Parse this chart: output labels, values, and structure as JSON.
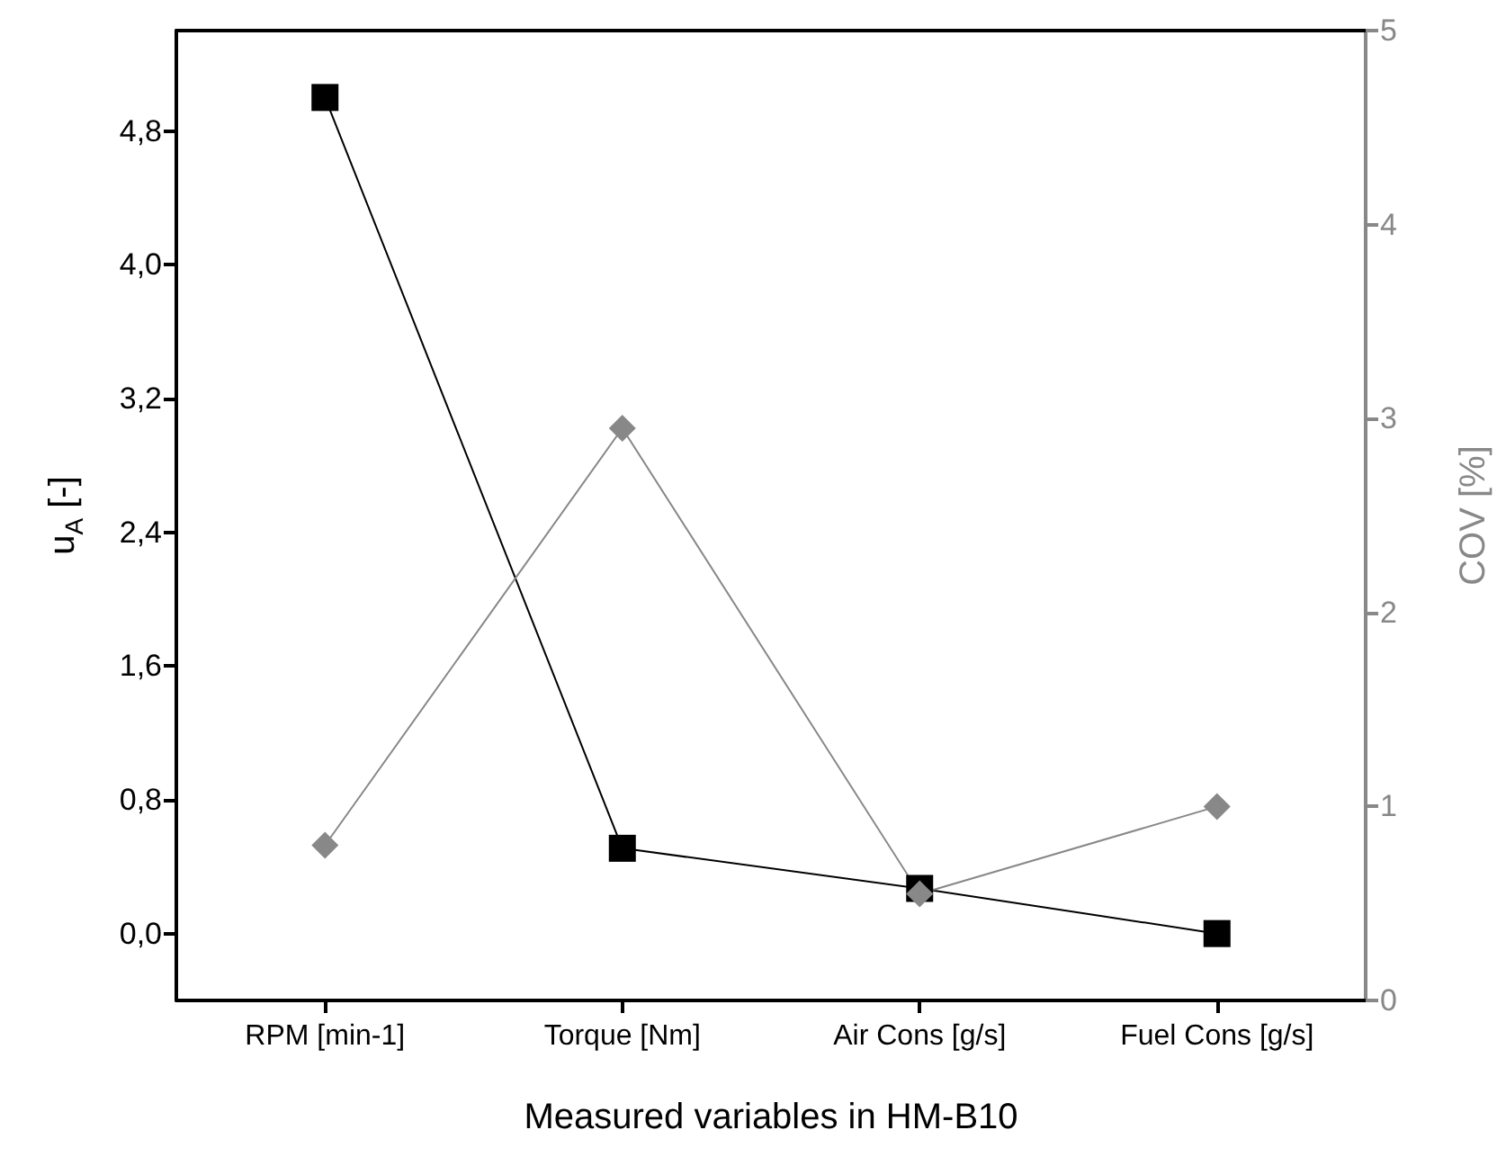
{
  "chart_data": {
    "type": "line",
    "xlabel": "Measured variables in HM-B10",
    "ylabel": "u$_{A}$ [-]",
    "y2label": "COV [%]",
    "categories": [
      "RPM [min-1]",
      "Torque [Nm]",
      "Air Cons [g/s]",
      "Fuel Cons [g/s]"
    ],
    "series": [
      {
        "color": "#000000",
        "marker": "square",
        "values": [
          5.0,
          0.51,
          0.27,
          0.0
        ]
      },
      {
        "color": "#888888",
        "marker": "diamond",
        "axis": "y2",
        "values": [
          0.8,
          2.95,
          0.55,
          1.0
        ]
      }
    ],
    "ylim": [
      -0.4,
      5.4
    ],
    "yticks": [
      {
        "value": 0,
        "label": "0,0"
      },
      {
        "value": 0.8,
        "label": "0,8"
      },
      {
        "value": 1.6,
        "label": "1,6"
      },
      {
        "value": 2.4,
        "label": "2,4"
      },
      {
        "value": 3.2,
        "label": "3,2"
      },
      {
        "value": 4.0,
        "label": "4,0"
      },
      {
        "value": 4.8,
        "label": "4,8"
      }
    ],
    "y2lim": [
      0,
      5
    ],
    "y2ticks": [
      0,
      1,
      2,
      3,
      4,
      5
    ],
    "grid": false,
    "line_style": "solid"
  }
}
